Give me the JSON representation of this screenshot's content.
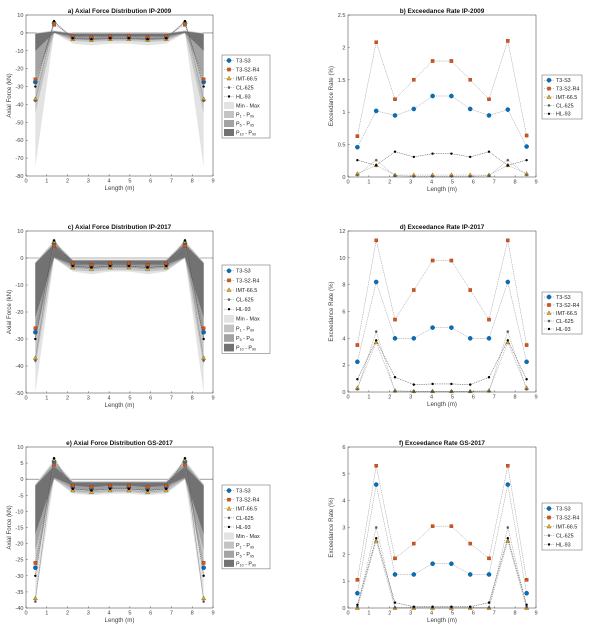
{
  "colors": {
    "T3-S3": "#0072BD",
    "T3-S2-R4": "#D95319",
    "IMT-66.5": "#EDB120",
    "CL-625": "#808080",
    "HL-93": "#000000",
    "band_minmax": "#e3e3e3",
    "band_p1": "#c4c4c4",
    "band_p5": "#a3a3a3",
    "band_p10": "#727272"
  },
  "markers": {
    "T3-S3": "circle",
    "T3-S2-R4": "square",
    "IMT-66.5": "triangle",
    "CL-625": "asterisk",
    "HL-93": "dot"
  },
  "chart_data": [
    {
      "type": "line",
      "title": "a) Axial Force Distribution  IP-2009",
      "xlabel": "Length (m)",
      "ylabel": "Axial Force (kN)",
      "xlim": [
        0,
        9
      ],
      "ylim": [
        -80,
        10
      ],
      "xticks": [
        "0",
        "1",
        "2",
        "3",
        "4",
        "5",
        "6",
        "7",
        "8",
        "9"
      ],
      "yticks": [
        "-80",
        "-70",
        "-60",
        "-50",
        "-40",
        "-30",
        "-20",
        "-10",
        "0",
        "10"
      ],
      "legend": "right",
      "x": [
        0.45,
        1.35,
        2.25,
        3.15,
        4.05,
        4.95,
        5.85,
        6.75,
        7.65,
        8.55
      ],
      "series": [
        {
          "name": "T3-S3",
          "values": [
            -27.5,
            5.5,
            -2.5,
            -3,
            -2.5,
            -2.5,
            -3,
            -2.5,
            5.5,
            -27.5
          ]
        },
        {
          "name": "T3-S2-R4",
          "values": [
            -26,
            4.5,
            -2,
            -2.5,
            -2,
            -2,
            -2.5,
            -2,
            4.5,
            -26
          ]
        },
        {
          "name": "IMT-66.5",
          "values": [
            -37,
            6,
            -3.5,
            -4,
            -3.5,
            -3.5,
            -4,
            -3.5,
            6,
            -37
          ]
        },
        {
          "name": "CL-625",
          "values": [
            -38,
            6.5,
            -3,
            -3.5,
            -3,
            -3,
            -3.5,
            -3,
            6.5,
            -38
          ]
        },
        {
          "name": "HL-93",
          "values": [
            -30,
            6.5,
            -3,
            -3.5,
            -3,
            -3,
            -3.5,
            -3,
            6.5,
            -30
          ]
        }
      ],
      "bands": [
        {
          "label": "Min - Max",
          "key": "band_minmax",
          "lower": [
            -75,
            0,
            -6,
            -7,
            -6,
            -6,
            -7,
            -6,
            0,
            -75
          ],
          "upper": [
            0,
            1.5,
            0,
            0,
            0,
            0,
            0,
            0,
            1.5,
            0
          ]
        },
        {
          "lo": "1",
          "hi": "99",
          "key": "band_p1",
          "lower": [
            -45,
            0,
            -4.5,
            -5,
            -4.5,
            -4.5,
            -5,
            -4.5,
            0,
            -45
          ],
          "upper": [
            -0.3,
            1.2,
            -0.2,
            -0.2,
            -0.2,
            -0.2,
            -0.2,
            -0.2,
            1.2,
            -0.3
          ]
        },
        {
          "lo": "5",
          "hi": "95",
          "key": "band_p5",
          "lower": [
            -25,
            0,
            -3.5,
            -4,
            -3.5,
            -3.5,
            -4,
            -3.5,
            0,
            -25
          ],
          "upper": [
            -0.4,
            1,
            -0.3,
            -0.3,
            -0.3,
            -0.3,
            -0.3,
            -0.3,
            1,
            -0.4
          ]
        },
        {
          "lo": "10",
          "hi": "90",
          "key": "band_p10",
          "lower": [
            -10,
            0,
            -2,
            -2,
            -2,
            -2,
            -2,
            -2,
            0,
            -10
          ],
          "upper": [
            -0.5,
            0.8,
            -0.5,
            -0.5,
            -0.5,
            -0.5,
            -0.5,
            -0.5,
            0.8,
            -0.5
          ]
        }
      ]
    },
    {
      "type": "line",
      "title": "b) Exceedance Rate  IP-2009",
      "xlabel": "Length (m)",
      "ylabel": "Exceedance Rate (%)",
      "xlim": [
        0,
        9
      ],
      "ylim": [
        0,
        2.5
      ],
      "xticks": [
        "0",
        "1",
        "2",
        "3",
        "4",
        "5",
        "6",
        "7",
        "8",
        "9"
      ],
      "yticks": [
        "0",
        "0.5",
        "1",
        "1.5",
        "2",
        "2.5"
      ],
      "legend": "right",
      "x": [
        0.45,
        1.35,
        2.25,
        3.15,
        4.05,
        4.95,
        5.85,
        6.75,
        7.65,
        8.55
      ],
      "series": [
        {
          "name": "T3-S3",
          "values": [
            0.46,
            1.02,
            0.95,
            1.05,
            1.25,
            1.25,
            1.05,
            0.95,
            1.04,
            0.47
          ]
        },
        {
          "name": "T3-S2-R4",
          "values": [
            0.63,
            2.08,
            1.2,
            1.5,
            1.79,
            1.79,
            1.5,
            1.2,
            2.1,
            0.64
          ]
        },
        {
          "name": "IMT-66.5",
          "values": [
            0.05,
            0.18,
            0.03,
            0.03,
            0.03,
            0.03,
            0.03,
            0.03,
            0.18,
            0.05
          ]
        },
        {
          "name": "CL-625",
          "values": [
            0.03,
            0.26,
            0.02,
            0.01,
            0.01,
            0.01,
            0.01,
            0.02,
            0.26,
            0.03
          ]
        },
        {
          "name": "HL-93",
          "values": [
            0.26,
            0.18,
            0.39,
            0.31,
            0.36,
            0.36,
            0.31,
            0.39,
            0.18,
            0.26
          ]
        }
      ]
    },
    {
      "type": "line",
      "title": "c) Axial Force Distribution  IP-2017",
      "xlabel": "Length (m)",
      "ylabel": "Axial Force (kN)",
      "xlim": [
        0,
        9
      ],
      "ylim": [
        -50,
        10
      ],
      "xticks": [
        "0",
        "1",
        "2",
        "3",
        "4",
        "5",
        "6",
        "7",
        "8",
        "9"
      ],
      "yticks": [
        "-50",
        "-40",
        "-30",
        "-20",
        "-10",
        "0",
        "10"
      ],
      "legend": "right",
      "x": [
        0.45,
        1.35,
        2.25,
        3.15,
        4.05,
        4.95,
        5.85,
        6.75,
        7.65,
        8.55
      ],
      "series": [
        {
          "name": "T3-S3",
          "values": [
            -27.5,
            5.5,
            -2.5,
            -3,
            -2.5,
            -2.5,
            -3,
            -2.5,
            5.5,
            -27.5
          ]
        },
        {
          "name": "T3-S2-R4",
          "values": [
            -26,
            4.5,
            -2,
            -2.5,
            -2,
            -2,
            -2.5,
            -2,
            4.5,
            -26
          ]
        },
        {
          "name": "IMT-66.5",
          "values": [
            -37,
            6,
            -3.5,
            -4,
            -3.5,
            -3.5,
            -4,
            -3.5,
            6,
            -37
          ]
        },
        {
          "name": "CL-625",
          "values": [
            -38,
            6.5,
            -3,
            -3.5,
            -3,
            -3,
            -3.5,
            -3,
            6.5,
            -38
          ]
        },
        {
          "name": "HL-93",
          "values": [
            -30,
            6.5,
            -3,
            -3.5,
            -3,
            -3,
            -3.5,
            -3,
            6.5,
            -30
          ]
        }
      ],
      "bands": [
        {
          "label": "Min - Max",
          "key": "band_minmax",
          "lower": [
            -50,
            0,
            -5,
            -6,
            -5,
            -5,
            -6,
            -5,
            0,
            -50
          ],
          "upper": [
            -1.5,
            6.5,
            -0.5,
            -0.5,
            -0.5,
            -0.5,
            -0.5,
            -0.5,
            6.5,
            -1.5
          ]
        },
        {
          "lo": "1",
          "hi": "99",
          "key": "band_p1",
          "lower": [
            -40,
            0,
            -4.5,
            -5,
            -4.5,
            -4.5,
            -5,
            -4.5,
            0,
            -40
          ],
          "upper": [
            -1.7,
            6,
            -0.7,
            -0.7,
            -0.7,
            -0.7,
            -0.7,
            -0.7,
            6,
            -1.7
          ]
        },
        {
          "lo": "5",
          "hi": "95",
          "key": "band_p5",
          "lower": [
            -30,
            0,
            -3.5,
            -4,
            -3.5,
            -3.5,
            -4,
            -3.5,
            0,
            -30
          ],
          "upper": [
            -1.8,
            5.5,
            -0.8,
            -0.8,
            -0.8,
            -0.8,
            -0.8,
            -0.8,
            5.5,
            -1.8
          ]
        },
        {
          "lo": "10",
          "hi": "90",
          "key": "band_p10",
          "lower": [
            -22,
            0.3,
            -2.5,
            -2.5,
            -2.5,
            -2.5,
            -2.5,
            -2.5,
            0.3,
            -22
          ],
          "upper": [
            -2,
            5,
            -1,
            -1,
            -1,
            -1,
            -1,
            -1,
            5,
            -2
          ]
        }
      ]
    },
    {
      "type": "line",
      "title": "d) Exceedance Rate  IP-2017",
      "xlabel": "Length (m)",
      "ylabel": "Exceedance Rate (%)",
      "xlim": [
        0,
        9
      ],
      "ylim": [
        0,
        12
      ],
      "xticks": [
        "0",
        "1",
        "2",
        "3",
        "4",
        "5",
        "6",
        "7",
        "8",
        "9"
      ],
      "yticks": [
        "0",
        "2",
        "4",
        "6",
        "8",
        "10",
        "12"
      ],
      "legend": "right",
      "x": [
        0.45,
        1.35,
        2.25,
        3.15,
        4.05,
        4.95,
        5.85,
        6.75,
        7.65,
        8.55
      ],
      "series": [
        {
          "name": "T3-S3",
          "values": [
            2.25,
            8.2,
            4,
            4,
            4.8,
            4.8,
            4,
            4,
            8.2,
            2.25
          ]
        },
        {
          "name": "T3-S2-R4",
          "values": [
            3.5,
            11.3,
            5.4,
            7.6,
            9.8,
            9.8,
            7.6,
            5.4,
            11.3,
            3.5
          ]
        },
        {
          "name": "IMT-66.5",
          "values": [
            0.3,
            3.7,
            0.1,
            0.05,
            0.05,
            0.05,
            0.05,
            0.1,
            3.7,
            0.3
          ]
        },
        {
          "name": "CL-625",
          "values": [
            0.2,
            4.5,
            0.05,
            0.05,
            0.05,
            0.05,
            0.05,
            0.05,
            4.5,
            0.2
          ]
        },
        {
          "name": "HL-93",
          "values": [
            0.95,
            3.85,
            1.1,
            0.55,
            0.6,
            0.6,
            0.55,
            1.1,
            3.85,
            0.95
          ]
        }
      ]
    },
    {
      "type": "line",
      "title": "e) Axial Force Distribution  GS-2017",
      "xlabel": "Length (m)",
      "ylabel": "Axial Force (kN)",
      "xlim": [
        0,
        9
      ],
      "ylim": [
        -40,
        10
      ],
      "xticks": [
        "0",
        "1",
        "2",
        "3",
        "4",
        "5",
        "6",
        "7",
        "8",
        "9"
      ],
      "yticks": [
        "-40",
        "-35",
        "-30",
        "-25",
        "-20",
        "-15",
        "-10",
        "-5",
        "0",
        "5",
        "10"
      ],
      "legend": "right",
      "x": [
        0.45,
        1.35,
        2.25,
        3.15,
        4.05,
        4.95,
        5.85,
        6.75,
        7.65,
        8.55
      ],
      "series": [
        {
          "name": "T3-S3",
          "values": [
            -27.5,
            5.5,
            -2.5,
            -3,
            -2.5,
            -2.5,
            -3,
            -2.5,
            5.5,
            -27.5
          ]
        },
        {
          "name": "T3-S2-R4",
          "values": [
            -26,
            4.5,
            -2,
            -2.5,
            -2,
            -2,
            -2.5,
            -2,
            4.5,
            -26
          ]
        },
        {
          "name": "IMT-66.5",
          "values": [
            -37,
            6,
            -3.5,
            -4,
            -3.5,
            -3.5,
            -4,
            -3.5,
            6,
            -37
          ]
        },
        {
          "name": "CL-625",
          "values": [
            -38,
            6.5,
            -3,
            -3.5,
            -3,
            -3,
            -3.5,
            -3,
            6.5,
            -38
          ]
        },
        {
          "name": "HL-93",
          "values": [
            -30,
            6.5,
            -3,
            -3.5,
            -3,
            -3,
            -3.5,
            -3,
            6.5,
            -30
          ]
        }
      ],
      "bands": [
        {
          "label": "Min - Max",
          "key": "band_minmax",
          "lower": [
            -38,
            0,
            -4.5,
            -5,
            -4.5,
            -4.5,
            -5,
            -4.5,
            0,
            -38
          ],
          "upper": [
            -1.5,
            6,
            -0.5,
            -0.5,
            -0.5,
            -0.5,
            -0.5,
            -0.5,
            6,
            -1.5
          ]
        },
        {
          "lo": "1",
          "hi": "99",
          "key": "band_p1",
          "lower": [
            -28,
            0,
            -4,
            -4.5,
            -4,
            -4,
            -4.5,
            -4,
            0,
            -28
          ],
          "upper": [
            -1.7,
            5.5,
            -0.7,
            -0.7,
            -0.7,
            -0.7,
            -0.7,
            -0.7,
            5.5,
            -1.7
          ]
        },
        {
          "lo": "5",
          "hi": "95",
          "key": "band_p5",
          "lower": [
            -22,
            0.2,
            -3,
            -3.5,
            -3,
            -3,
            -3.5,
            -3,
            0.2,
            -22
          ],
          "upper": [
            -2,
            5,
            -1,
            -1,
            -1,
            -1,
            -1,
            -1,
            5,
            -2
          ]
        },
        {
          "lo": "10",
          "hi": "90",
          "key": "band_p10",
          "lower": [
            -17,
            0.5,
            -2,
            -2.5,
            -2,
            -2,
            -2.5,
            -2,
            0.5,
            -17
          ],
          "upper": [
            -2,
            4,
            -1,
            -1,
            -1,
            -1,
            -1,
            -1,
            4,
            -2
          ]
        }
      ]
    },
    {
      "type": "line",
      "title": "f) Exceedance Rate  GS-2017",
      "xlabel": "Length (m)",
      "ylabel": "Exceedance Rate (%)",
      "xlim": [
        0,
        9
      ],
      "ylim": [
        0,
        6
      ],
      "xticks": [
        "0",
        "1",
        "2",
        "3",
        "4",
        "5",
        "6",
        "7",
        "8",
        "9"
      ],
      "yticks": [
        "0",
        "1",
        "2",
        "3",
        "4",
        "5",
        "6"
      ],
      "legend": "right",
      "x": [
        0.45,
        1.35,
        2.25,
        3.15,
        4.05,
        4.95,
        5.85,
        6.75,
        7.65,
        8.55
      ],
      "series": [
        {
          "name": "T3-S3",
          "values": [
            0.55,
            4.6,
            1.25,
            1.25,
            1.65,
            1.65,
            1.25,
            1.25,
            4.6,
            0.55
          ]
        },
        {
          "name": "T3-S2-R4",
          "values": [
            1.05,
            5.3,
            1.85,
            2.4,
            3.05,
            3.05,
            2.4,
            1.85,
            5.3,
            1.05
          ]
        },
        {
          "name": "IMT-66.5",
          "values": [
            0,
            2.5,
            0,
            0,
            0,
            0,
            0,
            0,
            2.5,
            0
          ]
        },
        {
          "name": "CL-625",
          "values": [
            0.05,
            3,
            0.02,
            0.02,
            0.02,
            0.02,
            0.02,
            0.02,
            3,
            0.05
          ]
        },
        {
          "name": "HL-93",
          "values": [
            0.12,
            2.6,
            0.2,
            0.05,
            0.05,
            0.05,
            0.05,
            0.2,
            2.6,
            0.12
          ]
        }
      ]
    }
  ]
}
